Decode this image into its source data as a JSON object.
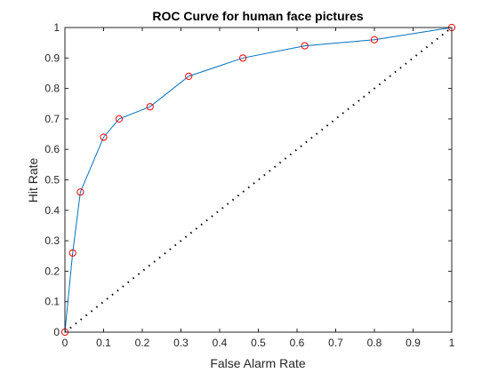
{
  "chart_data": {
    "type": "line",
    "title": "ROC Curve for human face pictures",
    "xlabel": "False Alarm Rate",
    "ylabel": "Hit Rate",
    "xlim": [
      0,
      1
    ],
    "ylim": [
      0,
      1
    ],
    "x_ticks": [
      "0",
      "0.1",
      "0.2",
      "0.3",
      "0.4",
      "0.5",
      "0.6",
      "0.7",
      "0.8",
      "0.9",
      "1"
    ],
    "y_ticks": [
      "0",
      "0.1",
      "0.2",
      "0.3",
      "0.4",
      "0.5",
      "0.6",
      "0.7",
      "0.8",
      "0.9",
      "1"
    ],
    "grid": false,
    "series": [
      {
        "style": "line-with-circle-markers",
        "line_color": "#0072BD",
        "marker_color": "#FF0000",
        "x": [
          0,
          0.02,
          0.04,
          0.1,
          0.14,
          0.22,
          0.32,
          0.46,
          0.62,
          0.8,
          1.0
        ],
        "y": [
          0,
          0.26,
          0.46,
          0.64,
          0.7,
          0.74,
          0.84,
          0.9,
          0.94,
          0.96,
          1.0
        ]
      },
      {
        "style": "dotted-line",
        "line_color": "#000000",
        "x": [
          0,
          1
        ],
        "y": [
          0,
          1
        ]
      }
    ]
  }
}
